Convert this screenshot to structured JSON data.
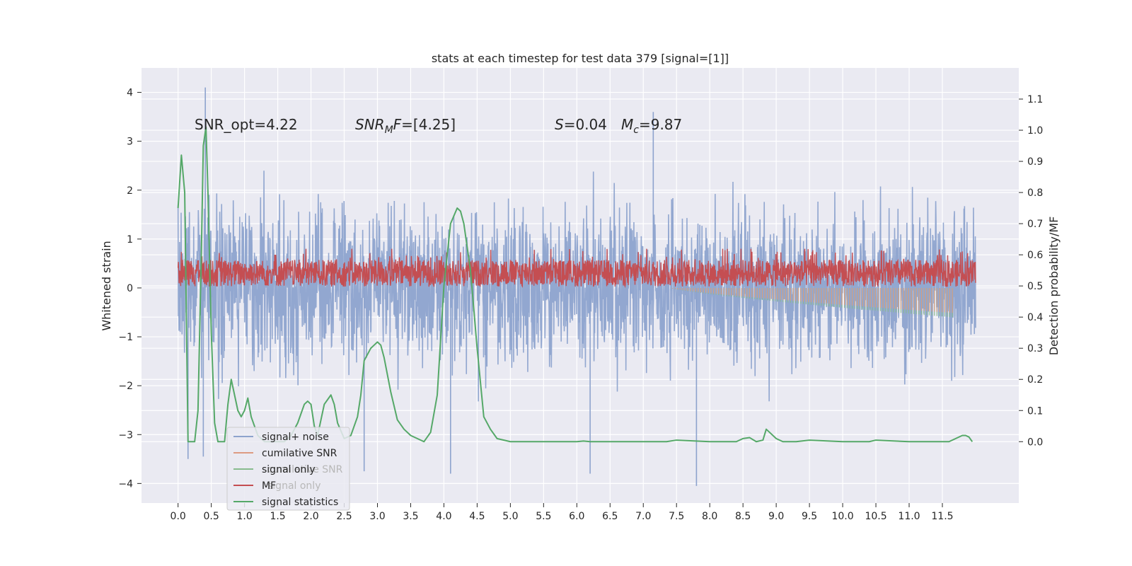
{
  "chart_data": {
    "type": "line",
    "title": "stats at each timestep for test data 379 [signal=[1]]",
    "ylabel": "Whitened strain",
    "y2label": "Detection probability/MF",
    "xlim": [
      -0.55,
      12.65
    ],
    "ylim": [
      -4.4,
      4.5
    ],
    "y2lim": [
      -0.197,
      1.2
    ],
    "x_ticks": [
      "0.0",
      "0.5",
      "1.0",
      "1.5",
      "2.0",
      "2.5",
      "3.0",
      "3.5",
      "4.0",
      "4.5",
      "5.0",
      "5.5",
      "6.0",
      "6.5",
      "7.0",
      "7.5",
      "8.0",
      "8.5",
      "9.0",
      "9.5",
      "10.0",
      "10.5",
      "11.0",
      "11.5"
    ],
    "y_ticks": [
      "4",
      "3",
      "2",
      "1",
      "0",
      "−1",
      "−2",
      "−3",
      "−4"
    ],
    "y2_ticks": [
      "1.1",
      "1.0",
      "0.9",
      "0.8",
      "0.7",
      "0.6",
      "0.5",
      "0.4",
      "0.3",
      "0.2",
      "0.1",
      "0.0"
    ],
    "annotations": {
      "snr_opt": "SNR_opt=4.22",
      "snr_mf_a": "SNR",
      "snr_mf_sub": "M",
      "snr_mf_b": "F",
      "snr_mf_c": "=[4.25]",
      "s_var": "S",
      "s_val": "=0.04",
      "mc_var": "M",
      "mc_sub": "c",
      "mc_val": "=9.87"
    },
    "legend": {
      "position": "lower-left",
      "entries": [
        {
          "label": "signal+ noise",
          "color": "#8da3cd"
        },
        {
          "label": "cumilative SNR",
          "color": "#dd9b82"
        },
        {
          "label": "signal only",
          "color": "#88bb8e"
        },
        {
          "label": "MF",
          "color": "#c44e52"
        },
        {
          "label": "signal statistics",
          "color": "#55a868"
        }
      ],
      "ghost_entries": [
        "cumilative SNR",
        "signal only"
      ]
    },
    "series": [
      {
        "name": "signal+ noise",
        "color": "#8da3cd",
        "x_range": [
          0.0,
          12.0
        ],
        "approx_band": [
          -2.0,
          2.3
        ],
        "peaks": [
          [
            0.41,
            4.1
          ],
          [
            0.38,
            -3.45
          ],
          [
            0.15,
            -3.5
          ],
          [
            4.1,
            -3.8
          ],
          [
            7.15,
            3.6
          ],
          [
            7.8,
            -4.05
          ],
          [
            6.2,
            -3.8
          ],
          [
            2.8,
            -3.75
          ]
        ]
      },
      {
        "name": "MF",
        "color": "#c44e52",
        "x_range": [
          0.0,
          12.0
        ],
        "approx_band": [
          0.0,
          0.8
        ]
      },
      {
        "name": "cumilative SNR",
        "color": "#dd9b82",
        "x_range": [
          7.4,
          11.65
        ],
        "values_end": [
          0.0,
          -0.55
        ]
      },
      {
        "name": "signal only",
        "color": "#88bb8e",
        "x_range": [
          7.4,
          11.65
        ],
        "values_end": [
          0.0,
          -0.6
        ]
      },
      {
        "name": "signal statistics",
        "color": "#55a868",
        "x": [
          0.0,
          0.05,
          0.1,
          0.15,
          0.2,
          0.25,
          0.3,
          0.35,
          0.38,
          0.42,
          0.45,
          0.5,
          0.55,
          0.6,
          0.7,
          0.75,
          0.8,
          0.9,
          0.95,
          1.0,
          1.05,
          1.1,
          1.2,
          1.3,
          1.4,
          1.5,
          1.6,
          1.7,
          1.8,
          1.9,
          1.95,
          2.0,
          2.05,
          2.1,
          2.2,
          2.3,
          2.35,
          2.4,
          2.5,
          2.6,
          2.7,
          2.75,
          2.8,
          2.9,
          2.95,
          3.0,
          3.05,
          3.1,
          3.2,
          3.3,
          3.4,
          3.5,
          3.6,
          3.7,
          3.8,
          3.9,
          4.0,
          4.1,
          4.2,
          4.25,
          4.3,
          4.4,
          4.5,
          4.6,
          4.7,
          4.8,
          5.0,
          5.5,
          6.0,
          6.1,
          6.2,
          7.0,
          7.35,
          7.5,
          8.0,
          8.4,
          8.5,
          8.6,
          8.7,
          8.8,
          8.85,
          8.9,
          9.0,
          9.1,
          9.3,
          9.5,
          10.0,
          10.4,
          10.5,
          11.0,
          11.6,
          11.8,
          11.85,
          11.9,
          11.95
        ],
        "values": [
          0.75,
          0.92,
          0.8,
          0.0,
          0.0,
          0.0,
          0.1,
          0.6,
          0.95,
          1.01,
          0.8,
          0.35,
          0.06,
          0.0,
          0.0,
          0.12,
          0.2,
          0.1,
          0.08,
          0.1,
          0.14,
          0.08,
          0.02,
          0.0,
          0.0,
          0.0,
          0.0,
          0.02,
          0.06,
          0.12,
          0.13,
          0.12,
          0.05,
          0.02,
          0.12,
          0.15,
          0.12,
          0.06,
          0.01,
          0.02,
          0.08,
          0.15,
          0.26,
          0.3,
          0.31,
          0.32,
          0.31,
          0.27,
          0.16,
          0.07,
          0.04,
          0.02,
          0.01,
          0.0,
          0.03,
          0.15,
          0.5,
          0.7,
          0.75,
          0.74,
          0.7,
          0.55,
          0.3,
          0.08,
          0.04,
          0.01,
          0.0,
          0.0,
          0.0,
          0.002,
          0.0,
          0.0,
          0.0,
          0.005,
          0.0,
          0.0,
          0.01,
          0.013,
          0.0,
          0.005,
          0.04,
          0.03,
          0.01,
          0.0,
          0.0,
          0.005,
          0.0,
          0.0,
          0.005,
          0.0,
          0.0,
          0.02,
          0.02,
          0.015,
          0.0
        ]
      }
    ]
  }
}
